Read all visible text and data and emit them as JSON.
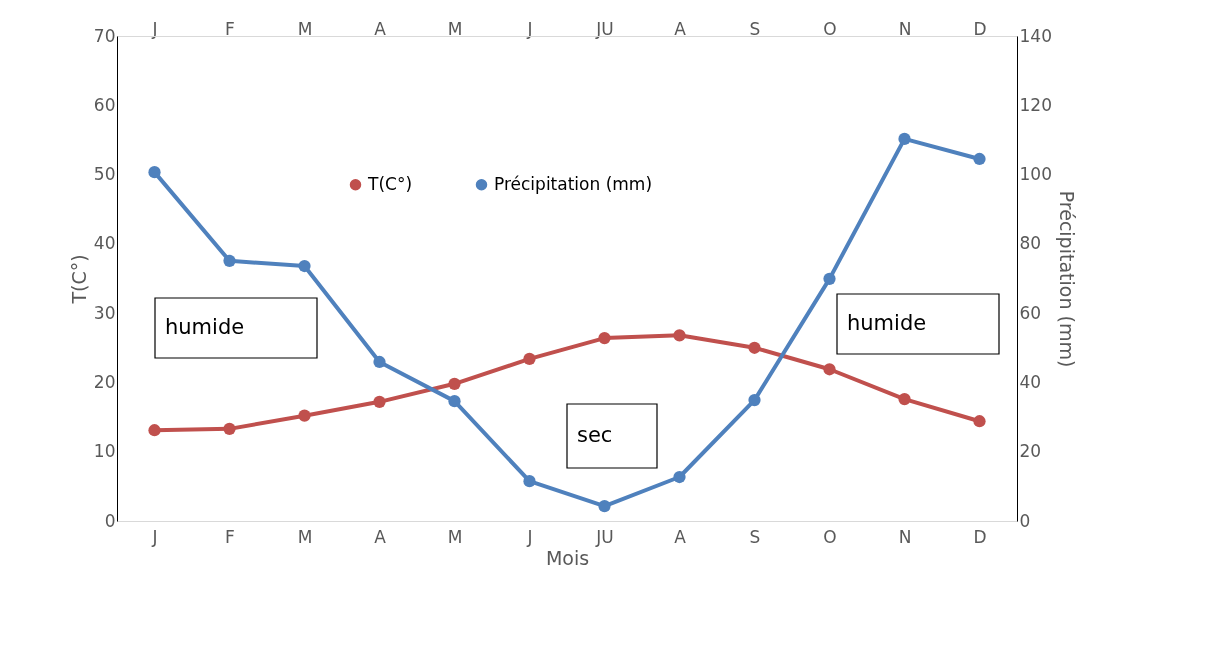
{
  "chart_data": {
    "type": "line",
    "categories": [
      "J",
      "F",
      "M",
      "A",
      "M",
      "J",
      "JU",
      "A",
      "S",
      "O",
      "N",
      "D"
    ],
    "xlabel": "Mois",
    "ylabel": "T(C°)",
    "y2label": "Précipitation (mm)",
    "ylim": [
      0,
      70
    ],
    "yticks": [
      0,
      10,
      20,
      30,
      40,
      50,
      60,
      70
    ],
    "y2lim": [
      0,
      140
    ],
    "y2ticks": [
      0,
      20,
      40,
      60,
      80,
      100,
      120,
      140
    ],
    "series": [
      {
        "name": "T(C°)",
        "color": "#c0504d",
        "values": [
          13.1,
          13.3,
          15.2,
          17.2,
          19.8,
          23.4,
          26.4,
          26.8,
          25.0,
          21.9,
          17.6,
          14.4
        ]
      },
      {
        "name": "Précipitation (mm)",
        "color": "#4f81bd",
        "axis": "y2",
        "values": [
          100.7,
          75.1,
          73.6,
          45.9,
          34.6,
          11.5,
          4.3,
          12.7,
          34.9,
          69.9,
          110.3,
          104.5
        ]
      }
    ],
    "annotations": [
      "humide",
      "sec",
      "humide"
    ],
    "marker": "circle",
    "line_style": "solid",
    "grid": false,
    "legend": "top"
  }
}
